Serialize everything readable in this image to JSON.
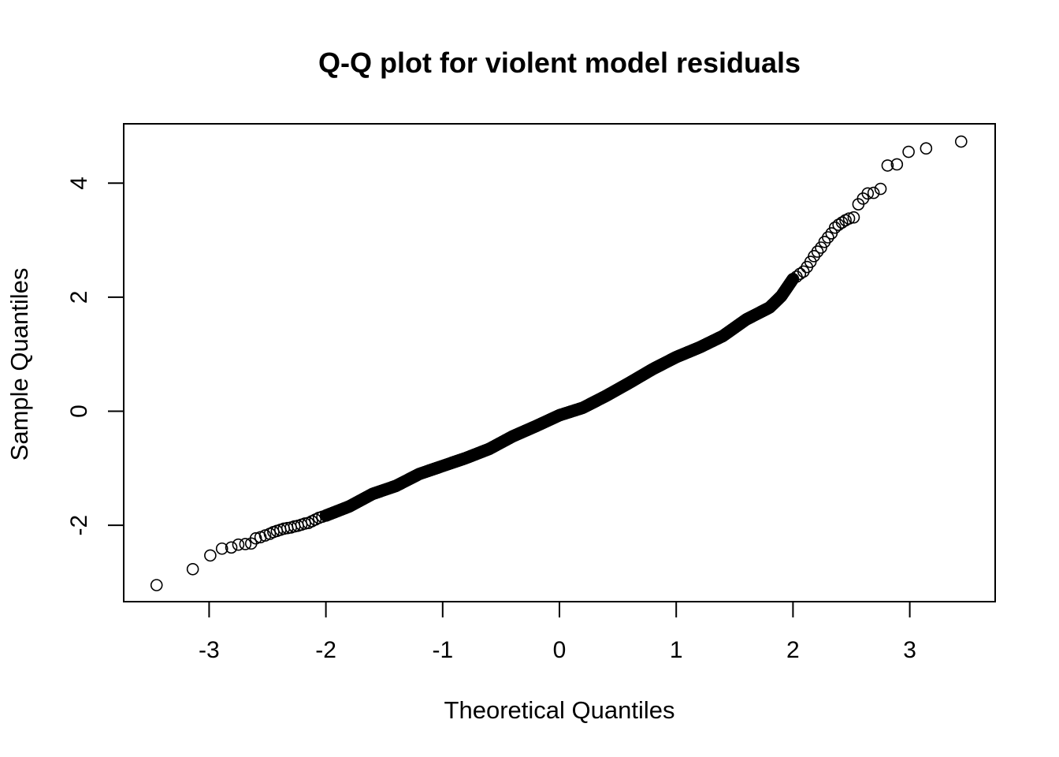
{
  "chart_data": {
    "type": "scatter",
    "title": "Q-Q plot for violent model residuals",
    "xlabel": "Theoretical Quantiles",
    "ylabel": "Sample Quantiles",
    "xlim": [
      -3.6,
      3.8
    ],
    "ylim": [
      -3.3,
      5.1
    ],
    "x_ticks": [
      -3,
      -2,
      -1,
      0,
      1,
      2,
      3
    ],
    "y_ticks": [
      -2,
      0,
      2,
      4
    ],
    "grid": false,
    "legend": "none",
    "marker": "open-circle",
    "points": [
      [
        -3.45,
        -3.05
      ],
      [
        -3.14,
        -2.77
      ],
      [
        -2.99,
        -2.53
      ],
      [
        -2.89,
        -2.41
      ],
      [
        -2.81,
        -2.39
      ],
      [
        -2.75,
        -2.34
      ],
      [
        -2.69,
        -2.33
      ],
      [
        -2.64,
        -2.32
      ],
      [
        -2.6,
        -2.23
      ],
      [
        -2.56,
        -2.21
      ],
      [
        -2.52,
        -2.18
      ],
      [
        -2.48,
        -2.15
      ],
      [
        -2.45,
        -2.12
      ],
      [
        -2.42,
        -2.1
      ],
      [
        -2.39,
        -2.08
      ],
      [
        -2.36,
        -2.06
      ],
      [
        -2.33,
        -2.05
      ],
      [
        -2.3,
        -2.04
      ],
      [
        -2.27,
        -2.02
      ],
      [
        -2.24,
        -2.01
      ],
      [
        -2.21,
        -1.99
      ],
      [
        -2.18,
        -1.97
      ],
      [
        -2.15,
        -1.96
      ],
      [
        -2.12,
        -1.93
      ],
      [
        -2.09,
        -1.9
      ],
      [
        -2.06,
        -1.87
      ],
      [
        -2.03,
        -1.85
      ],
      [
        -2.0,
        -1.83
      ],
      [
        3.44,
        4.73
      ],
      [
        3.14,
        4.61
      ],
      [
        2.99,
        4.55
      ],
      [
        2.89,
        4.33
      ],
      [
        2.81,
        4.31
      ],
      [
        2.75,
        3.9
      ],
      [
        2.69,
        3.83
      ],
      [
        2.64,
        3.82
      ],
      [
        2.6,
        3.73
      ],
      [
        2.56,
        3.63
      ],
      [
        2.52,
        3.4
      ],
      [
        2.48,
        3.38
      ],
      [
        2.45,
        3.35
      ],
      [
        2.42,
        3.31
      ],
      [
        2.39,
        3.27
      ],
      [
        2.36,
        3.22
      ],
      [
        2.33,
        3.12
      ],
      [
        2.3,
        3.05
      ],
      [
        2.27,
        2.97
      ],
      [
        2.24,
        2.87
      ],
      [
        2.21,
        2.8
      ],
      [
        2.18,
        2.72
      ],
      [
        2.15,
        2.62
      ],
      [
        2.12,
        2.53
      ],
      [
        2.09,
        2.45
      ],
      [
        2.06,
        2.41
      ],
      [
        2.03,
        2.36
      ],
      [
        2.0,
        2.32
      ]
    ],
    "dense_curve": [
      [
        -2.0,
        -1.83
      ],
      [
        -1.8,
        -1.67
      ],
      [
        -1.6,
        -1.45
      ],
      [
        -1.4,
        -1.31
      ],
      [
        -1.2,
        -1.1
      ],
      [
        -1.0,
        -0.96
      ],
      [
        -0.8,
        -0.82
      ],
      [
        -0.6,
        -0.66
      ],
      [
        -0.4,
        -0.44
      ],
      [
        -0.2,
        -0.26
      ],
      [
        0.0,
        -0.07
      ],
      [
        0.2,
        0.06
      ],
      [
        0.4,
        0.27
      ],
      [
        0.6,
        0.5
      ],
      [
        0.8,
        0.74
      ],
      [
        1.0,
        0.95
      ],
      [
        1.2,
        1.12
      ],
      [
        1.4,
        1.32
      ],
      [
        1.6,
        1.61
      ],
      [
        1.8,
        1.82
      ],
      [
        1.9,
        2.02
      ],
      [
        2.0,
        2.32
      ]
    ]
  }
}
